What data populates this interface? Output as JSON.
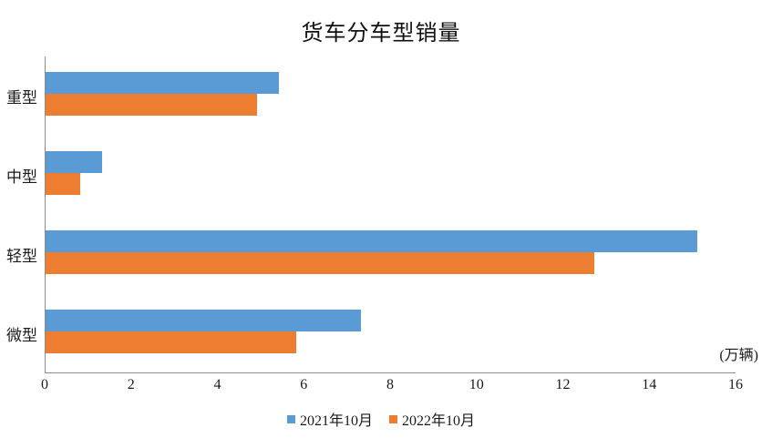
{
  "chart_data": {
    "type": "bar",
    "orientation": "horizontal",
    "title": "货车分车型销量",
    "unit_label": "(万辆)",
    "categories": [
      "重型",
      "中型",
      "轻型",
      "微型"
    ],
    "series": [
      {
        "name": "2021年10月",
        "color": "#5B9BD5",
        "values": [
          5.4,
          1.3,
          15.1,
          7.3
        ]
      },
      {
        "name": "2022年10月",
        "color": "#ED7D31",
        "values": [
          4.9,
          0.8,
          12.7,
          5.8
        ]
      }
    ],
    "xlim": [
      0,
      16
    ],
    "xticks": [
      0,
      2,
      4,
      6,
      8,
      10,
      12,
      14,
      16
    ],
    "grid": false,
    "legend_position": "bottom",
    "axis_color": "#8c8c8c"
  }
}
